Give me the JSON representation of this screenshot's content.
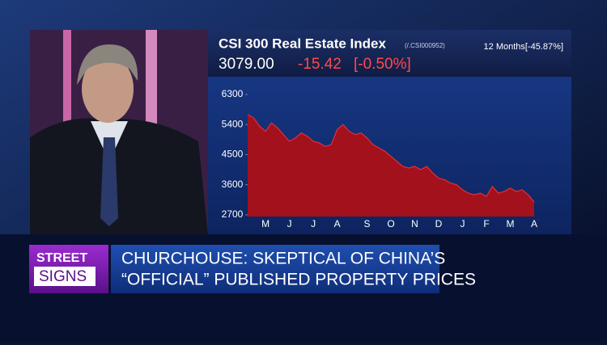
{
  "chart_data": {
    "type": "area",
    "title": "CSI 300 Real Estate Index",
    "ticker": "(/.CSI000952)",
    "period": "12 Months[-45.87%]",
    "last": "3079.00",
    "change": "-15.42",
    "change_pct": "[-0.50%]",
    "categories": [
      null,
      null,
      null,
      "M",
      null,
      null,
      null,
      "J",
      null,
      null,
      null,
      "J",
      null,
      null,
      null,
      "A",
      null,
      null,
      null,
      null,
      "S",
      null,
      null,
      null,
      "O",
      null,
      null,
      null,
      "N",
      null,
      null,
      null,
      "D",
      null,
      null,
      null,
      "J",
      null,
      null,
      null,
      "F",
      null,
      null,
      null,
      "M",
      null,
      null,
      null,
      "A"
    ],
    "series": [
      {
        "name": "CSI 300 Real Estate Index",
        "color": "#a3111c",
        "values": [
          5700,
          5600,
          5350,
          5200,
          5450,
          5300,
          5100,
          4900,
          5000,
          5150,
          5050,
          4900,
          4850,
          4750,
          4800,
          5250,
          5400,
          5200,
          5100,
          5150,
          5000,
          4800,
          4700,
          4600,
          4450,
          4300,
          4150,
          4100,
          4150,
          4050,
          4150,
          3950,
          3800,
          3750,
          3650,
          3600,
          3450,
          3350,
          3300,
          3350,
          3250,
          3550,
          3350,
          3400,
          3500,
          3400,
          3450,
          3300,
          3079
        ]
      }
    ],
    "ylim": [
      2650,
      6830
    ],
    "yticks": [
      2700,
      3600,
      4500,
      5400,
      6300
    ]
  },
  "lower_third": {
    "show_top": "STREET",
    "show_bottom": "SIGNS",
    "headline_1": "CHURCHOUSE: SKEPTICAL OF CHINA’S",
    "headline_2": "“OFFICIAL” PUBLISHED PROPERTY PRICES"
  }
}
